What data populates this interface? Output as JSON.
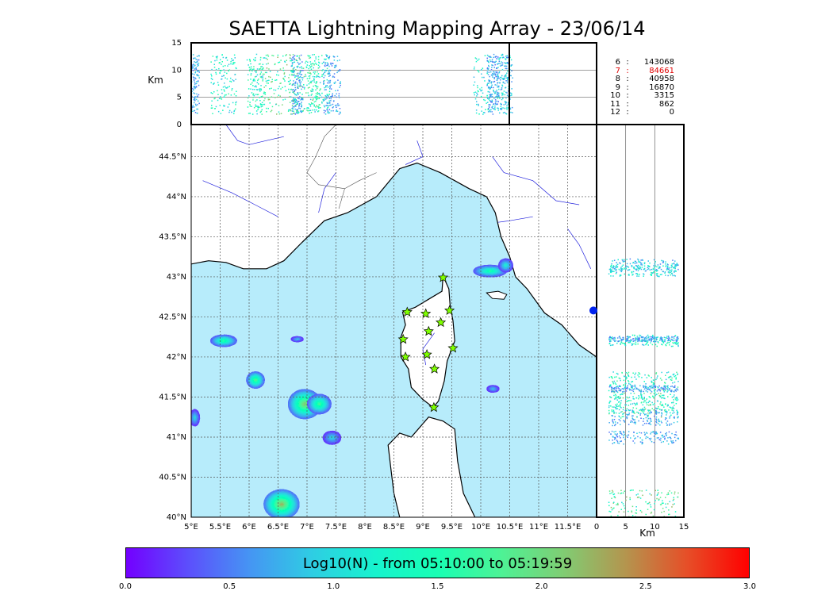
{
  "chart_data": {
    "type": "scatter",
    "title": "SAETTA Lightning Mapping Array - 23/06/14",
    "map": {
      "lon_range": [
        5,
        12
      ],
      "lat_range": [
        40,
        44.9
      ],
      "lon_ticks": [
        "5°E",
        "5.5°E",
        "6°E",
        "6.5°E",
        "7°E",
        "7.5°E",
        "8°E",
        "8.5°E",
        "9°E",
        "9.5°E",
        "10°E",
        "10.5°E",
        "11°E",
        "11.5°E"
      ],
      "lat_ticks": [
        "40°N",
        "40.5°N",
        "41°N",
        "41.5°N",
        "42°N",
        "42.5°N",
        "43°N",
        "43.5°N",
        "44°N",
        "44.5°N"
      ],
      "grid": true
    },
    "altitude_axis": {
      "label": "Km",
      "ticks": [
        "0",
        "5",
        "10",
        "15"
      ],
      "range": [
        0,
        15
      ]
    },
    "stations": [
      {
        "lon": 9.35,
        "lat": 42.99
      },
      {
        "lon": 8.73,
        "lat": 42.56
      },
      {
        "lon": 9.05,
        "lat": 42.54
      },
      {
        "lon": 9.46,
        "lat": 42.58
      },
      {
        "lon": 9.31,
        "lat": 42.43
      },
      {
        "lon": 9.1,
        "lat": 42.32
      },
      {
        "lon": 8.66,
        "lat": 42.22
      },
      {
        "lon": 9.52,
        "lat": 42.11
      },
      {
        "lon": 8.7,
        "lat": 42.0
      },
      {
        "lon": 9.07,
        "lat": 42.03
      },
      {
        "lon": 9.2,
        "lat": 41.85
      },
      {
        "lon": 9.19,
        "lat": 41.37
      }
    ],
    "sources": [
      {
        "lon": 10.15,
        "lat": 43.08,
        "rx": 0.28,
        "ry": 0.07,
        "intensity": 1.6
      },
      {
        "lon": 10.42,
        "lat": 43.15,
        "rx": 0.12,
        "ry": 0.08,
        "intensity": 1.2
      },
      {
        "lon": 5.55,
        "lat": 42.21,
        "rx": 0.22,
        "ry": 0.07,
        "intensity": 1.7
      },
      {
        "lon": 6.82,
        "lat": 42.23,
        "rx": 0.1,
        "ry": 0.03,
        "intensity": 0.9
      },
      {
        "lon": 6.1,
        "lat": 41.72,
        "rx": 0.15,
        "ry": 0.1,
        "intensity": 1.9
      },
      {
        "lon": 6.95,
        "lat": 41.42,
        "rx": 0.28,
        "ry": 0.18,
        "intensity": 2.2
      },
      {
        "lon": 7.2,
        "lat": 41.42,
        "rx": 0.2,
        "ry": 0.12,
        "intensity": 1.8
      },
      {
        "lon": 7.42,
        "lat": 41.0,
        "rx": 0.15,
        "ry": 0.08,
        "intensity": 1.0
      },
      {
        "lon": 6.55,
        "lat": 40.17,
        "rx": 0.3,
        "ry": 0.18,
        "intensity": 2.3
      },
      {
        "lon": 5.05,
        "lat": 41.25,
        "rx": 0.08,
        "ry": 0.1,
        "intensity": 1.0
      },
      {
        "lon": 10.2,
        "lat": 41.61,
        "rx": 0.1,
        "ry": 0.04,
        "intensity": 0.9
      }
    ],
    "counts": [
      {
        "stations": "6",
        "n": "143068",
        "highlight": false
      },
      {
        "stations": "7",
        "n": "84661",
        "highlight": true
      },
      {
        "stations": "8",
        "n": "40958",
        "highlight": false
      },
      {
        "stations": "9",
        "n": "16870",
        "highlight": false
      },
      {
        "stations": "10",
        "n": "3315",
        "highlight": false
      },
      {
        "stations": "11",
        "n": "862",
        "highlight": false
      },
      {
        "stations": "12",
        "n": "0",
        "highlight": false
      }
    ],
    "colorbar": {
      "label": "Log10(N) - from 05:10:00 to 05:19:59",
      "range": [
        0,
        3
      ],
      "ticks": [
        "0.0",
        "0.5",
        "1.0",
        "1.5",
        "2.0",
        "2.5",
        "3.0"
      ],
      "colormap": "rainbow"
    }
  },
  "colors": {
    "sea": "#b7ecfb",
    "land": "#ffffff",
    "rivers": "#2222dd",
    "station_fill": "#7fff00"
  }
}
